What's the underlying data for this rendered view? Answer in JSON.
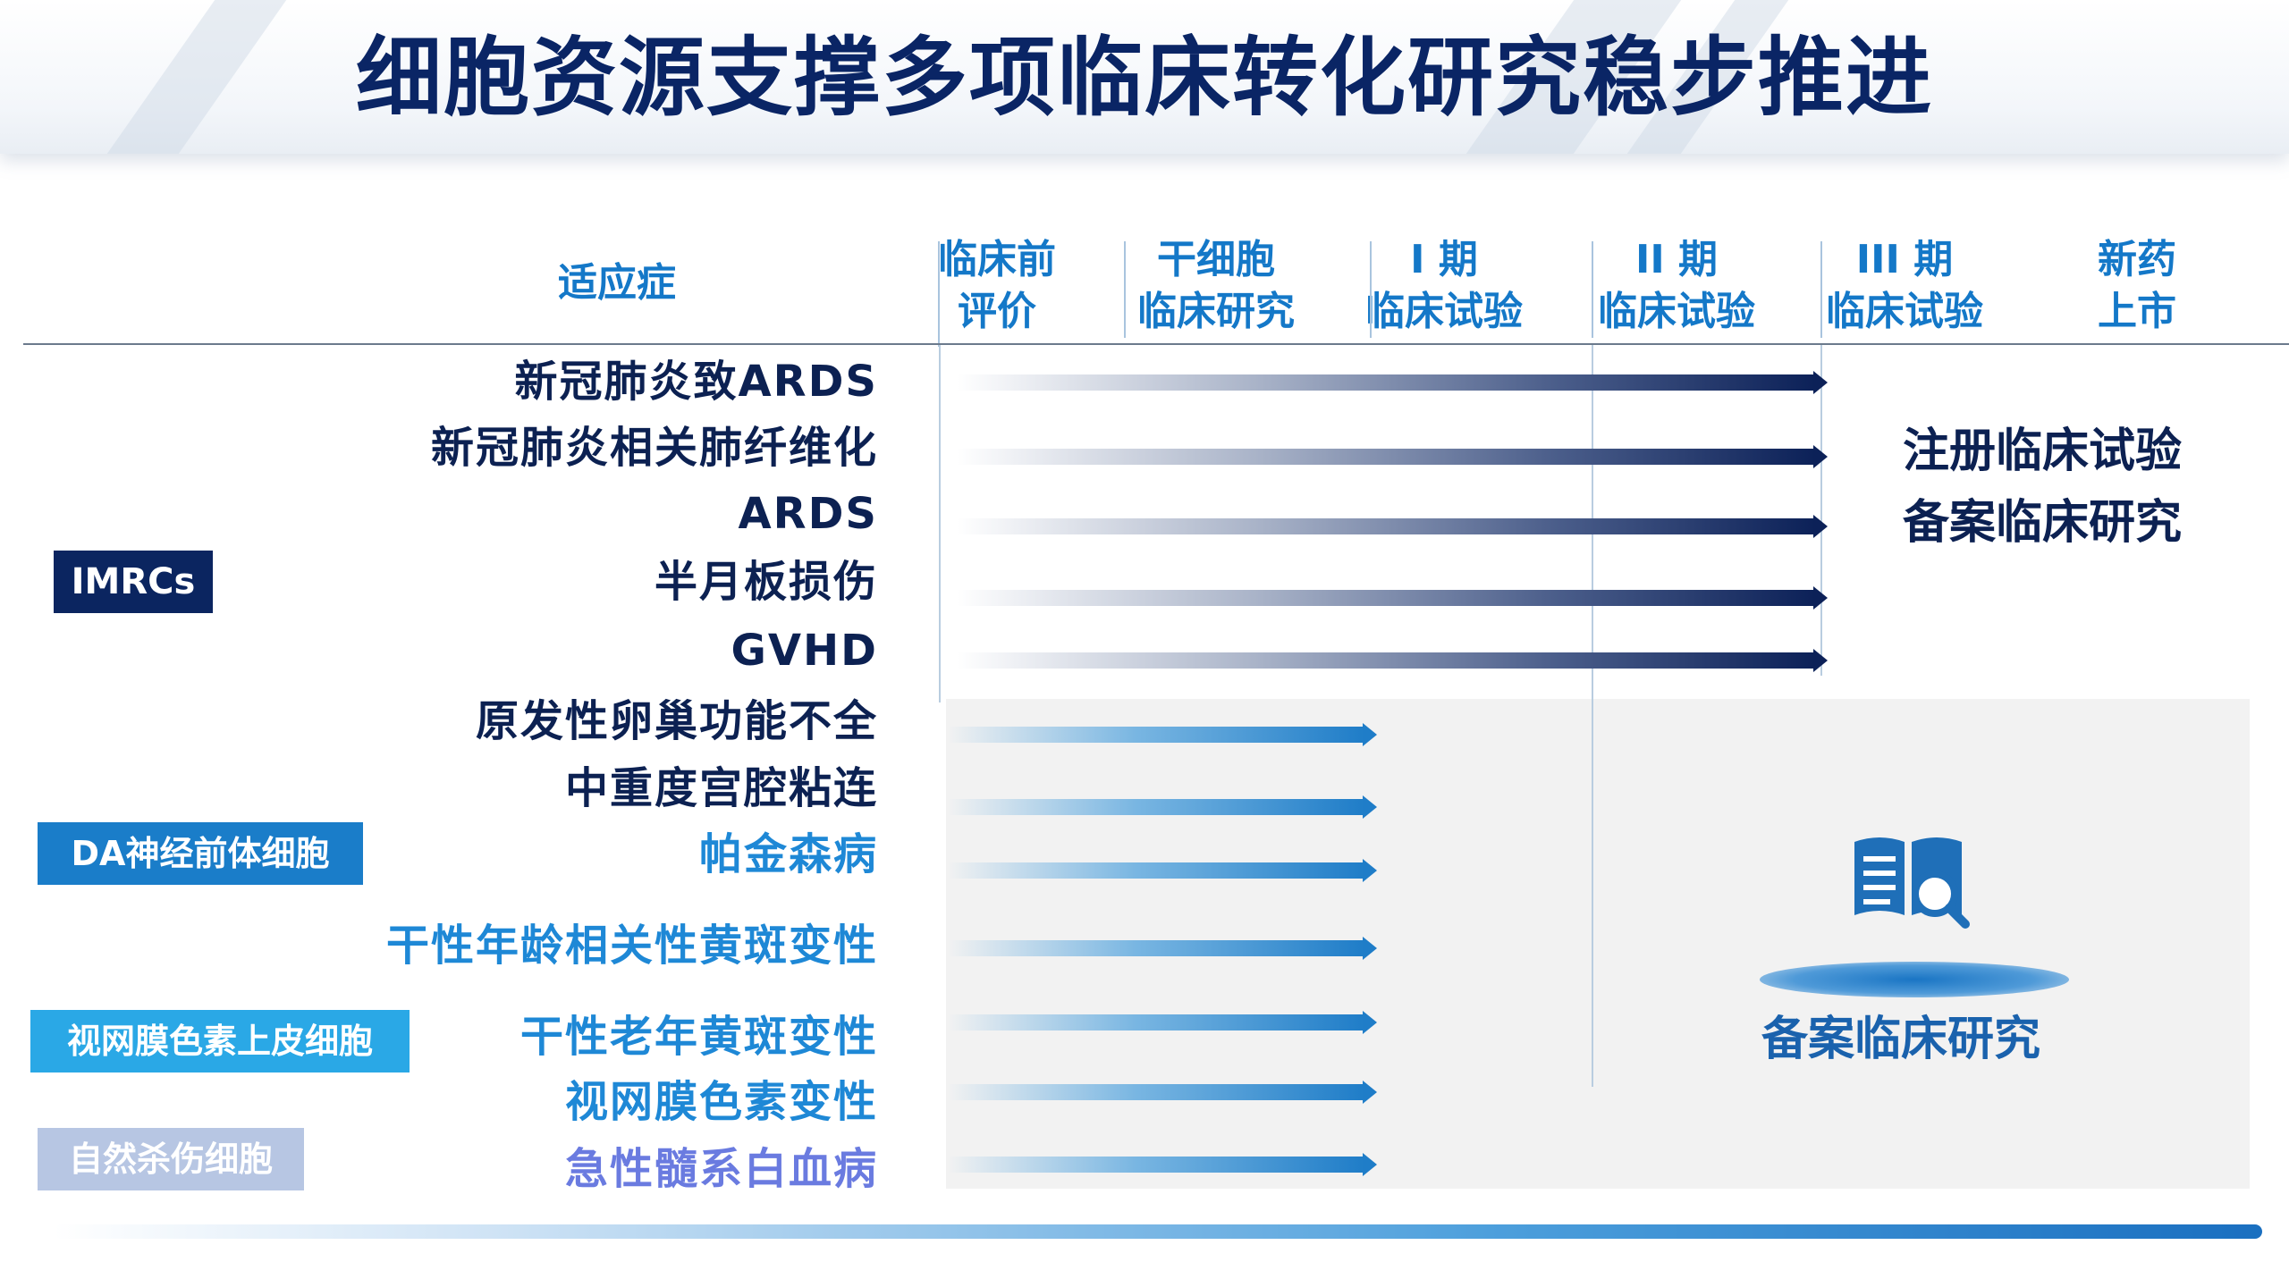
{
  "title": "细胞资源支撑多项临床转化研究稳步推进",
  "header": {
    "indication_label": "适应症",
    "stages": [
      {
        "line1": "临床前",
        "line2": "评价"
      },
      {
        "line1": "干细胞",
        "line2": "临床研究"
      },
      {
        "line1": "I 期",
        "line2": "临床试验"
      },
      {
        "line1": "II 期",
        "line2": "临床试验"
      },
      {
        "line1": "III 期",
        "line2": "临床试验"
      },
      {
        "line1": "新药",
        "line2": "上市"
      }
    ]
  },
  "categories": [
    {
      "label": "IMRCs",
      "color": "#0b2560"
    },
    {
      "label": "DA神经前体细胞",
      "color": "#1a7dc9"
    },
    {
      "label": "视网膜色素上皮细胞",
      "color": "#2aa8e6"
    },
    {
      "label": "自然杀伤细胞",
      "color": "#b7c6e3"
    }
  ],
  "indications": [
    {
      "label": "新冠肺炎致ARDS",
      "category": "IMRCs",
      "reached_stage": "II 期临床试验"
    },
    {
      "label": "新冠肺炎相关肺纤维化",
      "category": "IMRCs",
      "reached_stage": "II 期临床试验"
    },
    {
      "label": "ARDS",
      "category": "IMRCs",
      "reached_stage": "II 期临床试验"
    },
    {
      "label": "半月板损伤",
      "category": "IMRCs",
      "reached_stage": "II 期临床试验"
    },
    {
      "label": "GVHD",
      "category": "IMRCs",
      "reached_stage": "II 期临床试验"
    },
    {
      "label": "原发性卵巢功能不全",
      "category": "IMRCs",
      "reached_stage": "干细胞临床研究"
    },
    {
      "label": "中重度宫腔粘连",
      "category": "IMRCs",
      "reached_stage": "干细胞临床研究"
    },
    {
      "label": "帕金森病",
      "category": "DA神经前体细胞",
      "reached_stage": "干细胞临床研究"
    },
    {
      "label": "干性年龄相关性黄斑变性",
      "category": "视网膜色素上皮细胞",
      "reached_stage": "干细胞临床研究"
    },
    {
      "label": "干性老年黄斑变性",
      "category": "视网膜色素上皮细胞",
      "reached_stage": "干细胞临床研究"
    },
    {
      "label": "视网膜色素变性",
      "category": "视网膜色素上皮细胞",
      "reached_stage": "干细胞临床研究"
    },
    {
      "label": "急性髓系白血病",
      "category": "自然杀伤细胞",
      "reached_stage": "干细胞临床研究"
    }
  ],
  "notes": {
    "registered": "注册临床试验",
    "filed_top": "备案临床研究",
    "filed_bottom": "备案临床研究"
  },
  "colors": {
    "title": "#0a2565",
    "stage_header": "#1478c8",
    "dark_bar_end": "#0c2158",
    "blue_bar_end": "#1f7dc8"
  },
  "icons": {
    "filed_study": "book-search-icon"
  }
}
